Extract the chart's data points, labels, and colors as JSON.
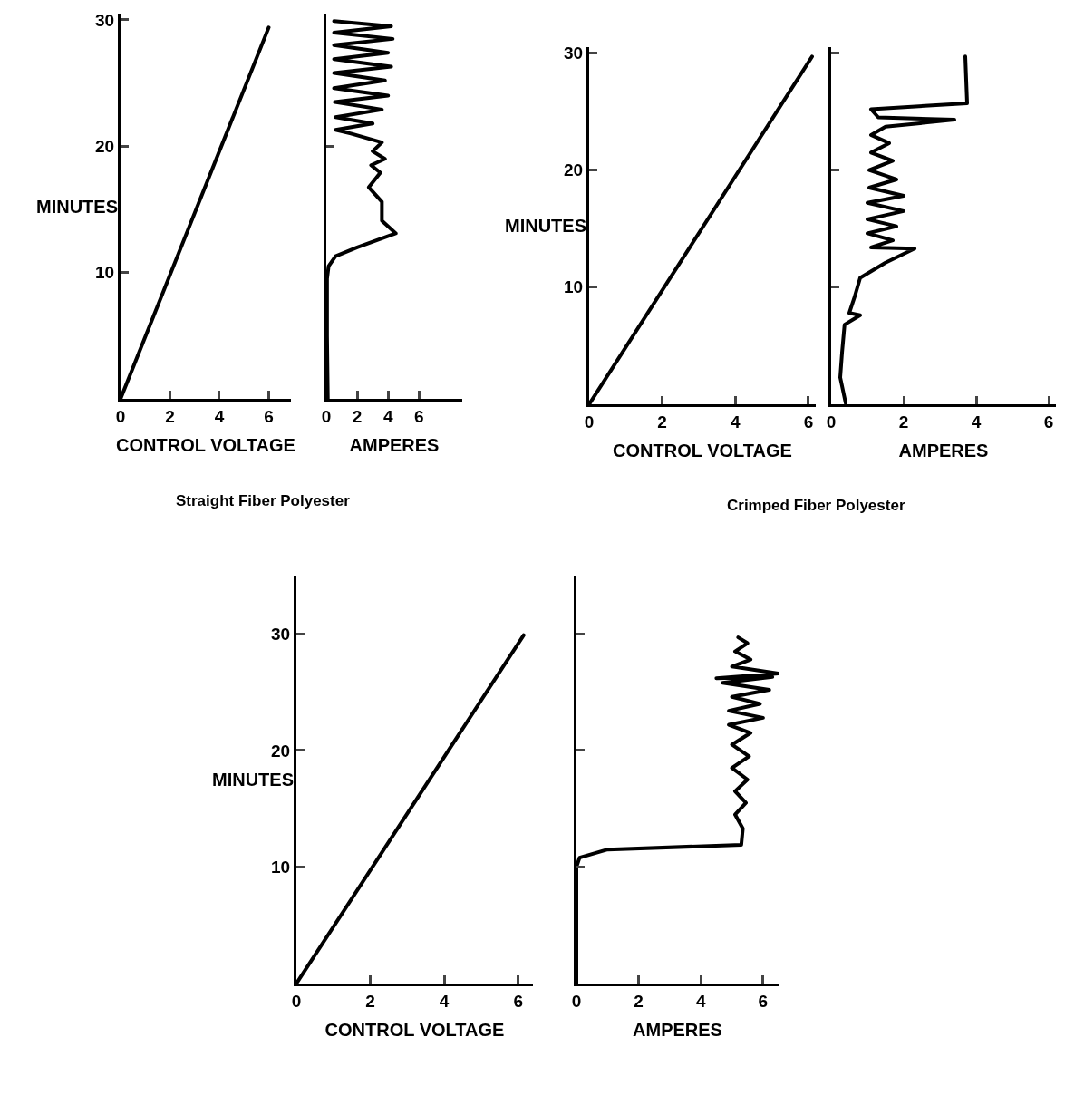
{
  "chart_data": [
    {
      "type": "line",
      "xlabel": "CONTROL VOLTAGE",
      "ylabel": "MINUTES",
      "annotations": [
        "Straight Fiber Polyester"
      ],
      "xlim": [
        0,
        6.9
      ],
      "ylim": [
        0,
        30.5
      ],
      "xticks": [
        0,
        2,
        4,
        6
      ],
      "yticks": [
        10,
        20,
        30
      ],
      "series": [
        {
          "color": "#000000",
          "x": [
            0,
            6.0
          ],
          "values": [
            0,
            29.4
          ]
        }
      ]
    },
    {
      "type": "line",
      "xlabel": "AMPERES",
      "xlim": [
        0,
        8.8
      ],
      "ylim": [
        0,
        30.5
      ],
      "xticks": [
        0,
        2,
        4,
        6
      ],
      "yticks": [
        20
      ],
      "tick_labels": "x",
      "series": [
        {
          "color": "#000000",
          "x": [
            0.1,
            0.05,
            0.05,
            0.15,
            0.6,
            2.0,
            4.5,
            3.6,
            3.6,
            2.75,
            3.5,
            2.9,
            3.8,
            3.0,
            3.6,
            1.6,
            0.6,
            3.0,
            0.6,
            3.6,
            0.55,
            4.0,
            0.5,
            3.8,
            0.5,
            4.2,
            0.5,
            4.0,
            0.5,
            4.3,
            0.5,
            4.2,
            0.5
          ],
          "values": [
            0,
            5,
            9.5,
            10.5,
            11.3,
            12.0,
            13.1,
            14.1,
            15.6,
            16.75,
            17.9,
            18.5,
            19.0,
            19.6,
            20.3,
            21.0,
            21.3,
            21.8,
            22.3,
            22.9,
            23.5,
            24.0,
            24.6,
            25.2,
            25.8,
            26.3,
            26.9,
            27.4,
            28.0,
            28.5,
            29.0,
            29.5,
            29.9
          ]
        }
      ]
    },
    {
      "type": "line",
      "xlabel": "CONTROL VOLTAGE",
      "ylabel": "MINUTES",
      "annotations": [
        "Crimped Fiber Polyester"
      ],
      "xlim": [
        0,
        6.2
      ],
      "ylim": [
        0,
        30.5
      ],
      "xticks": [
        0,
        2,
        4,
        6
      ],
      "yticks": [
        10,
        20,
        30
      ],
      "series": [
        {
          "color": "#000000",
          "x": [
            0,
            6.1
          ],
          "values": [
            0,
            29.7
          ]
        }
      ]
    },
    {
      "type": "line",
      "xlabel": "AMPERES",
      "xlim": [
        0,
        6.2
      ],
      "ylim": [
        0,
        30.5
      ],
      "xticks": [
        0,
        2,
        4,
        6
      ],
      "yticks": [
        10,
        20,
        30
      ],
      "tick_labels": "x",
      "series": [
        {
          "color": "#000000",
          "x": [
            0.4,
            0.25,
            0.3,
            0.37,
            0.8,
            0.5,
            0.65,
            0.8,
            1.5,
            2.3,
            1.1,
            1.7,
            1.0,
            1.8,
            1.0,
            2.0,
            1.0,
            2.0,
            1.05,
            1.8,
            1.05,
            1.7,
            1.1,
            1.6,
            1.1,
            1.5,
            3.4,
            1.3,
            1.1,
            3.75,
            3.7
          ],
          "values": [
            0.1,
            2.3,
            4.4,
            6.8,
            7.6,
            7.8,
            9.2,
            10.8,
            12.1,
            13.3,
            13.4,
            14.0,
            14.6,
            15.2,
            15.8,
            16.5,
            17.2,
            17.8,
            18.5,
            19.2,
            20.0,
            20.8,
            21.5,
            22.3,
            23.0,
            23.7,
            24.3,
            24.5,
            25.2,
            25.7,
            29.7
          ]
        }
      ]
    },
    {
      "type": "line",
      "xlabel": "CONTROL VOLTAGE",
      "ylabel": "MINUTES",
      "xlim": [
        0,
        6.4
      ],
      "ylim": [
        0,
        35
      ],
      "xticks": [
        0,
        2,
        4,
        6
      ],
      "yticks": [
        10,
        20,
        30
      ],
      "series": [
        {
          "color": "#000000",
          "x": [
            0,
            6.15
          ],
          "values": [
            0,
            29.9
          ]
        }
      ]
    },
    {
      "type": "line",
      "xlabel": "AMPERES",
      "xlim": [
        0,
        6.5
      ],
      "ylim": [
        0,
        35
      ],
      "xticks": [
        0,
        2,
        4,
        6
      ],
      "yticks": [
        10,
        20,
        30
      ],
      "tick_labels": "x",
      "series": [
        {
          "color": "#000000",
          "x": [
            0,
            0,
            0.1,
            1.0,
            5.3,
            5.35,
            5.1,
            5.45,
            5.1,
            5.5,
            5.0,
            5.55,
            5.0,
            5.6,
            4.9,
            6.0,
            4.9,
            5.9,
            5.0,
            6.2,
            4.7,
            6.3,
            4.5,
            6.5,
            5.0,
            5.6,
            5.1,
            5.5,
            5.2
          ],
          "values": [
            0,
            10,
            10.8,
            11.5,
            11.9,
            13.3,
            14.5,
            15.5,
            16.5,
            17.5,
            18.5,
            19.5,
            20.5,
            21.5,
            22.2,
            22.8,
            23.4,
            24.0,
            24.6,
            25.2,
            25.8,
            26.3,
            26.2,
            26.6,
            27.2,
            27.8,
            28.5,
            29.2,
            29.7
          ]
        }
      ]
    }
  ]
}
